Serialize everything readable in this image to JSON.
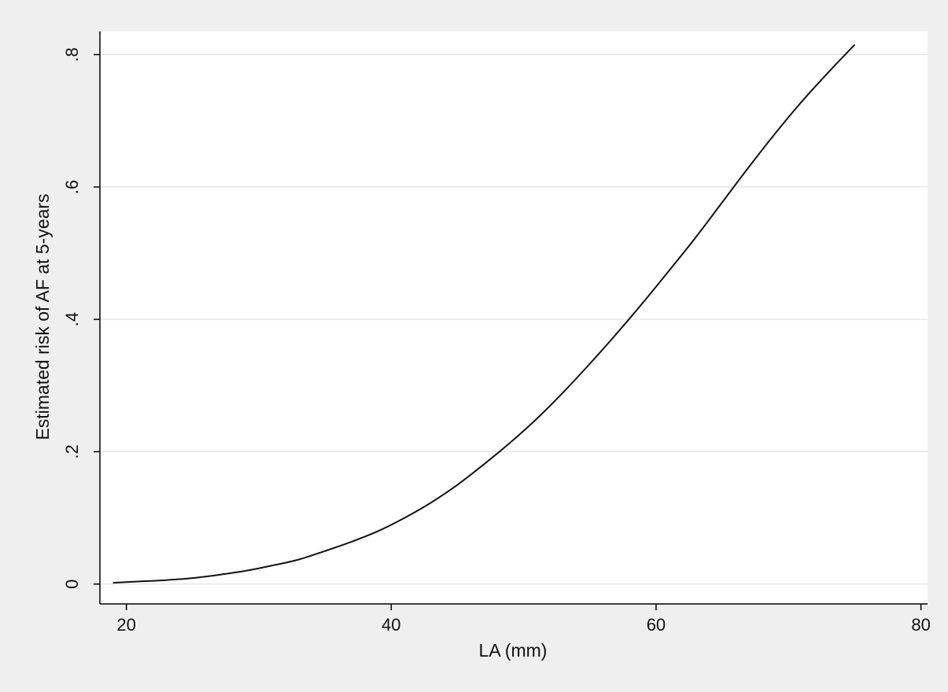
{
  "chart_data": {
    "type": "line",
    "title": "",
    "xlabel": "LA (mm)",
    "ylabel": "Estimated risk of AF at 5-years",
    "xlim": [
      18,
      80.5
    ],
    "ylim": [
      -0.03,
      0.835
    ],
    "x_ticks": [
      20,
      40,
      60,
      80
    ],
    "x_tick_labels": [
      "20",
      "40",
      "60",
      "80"
    ],
    "y_ticks": [
      0,
      0.2,
      0.4,
      0.6,
      0.8
    ],
    "y_tick_labels": [
      "0",
      ".2",
      ".4",
      ".6",
      ".8"
    ],
    "grid": "horizontal",
    "legend": "none",
    "series": [
      {
        "x": [
          19,
          21,
          23,
          25,
          27,
          29,
          31,
          33,
          35,
          37,
          39,
          41,
          43,
          45,
          47,
          49,
          51,
          53,
          55,
          57,
          59,
          61,
          63,
          65,
          67,
          69,
          71,
          73,
          75
        ],
        "values": [
          0.002,
          0.004,
          0.006,
          0.009,
          0.014,
          0.02,
          0.028,
          0.037,
          0.05,
          0.064,
          0.08,
          0.1,
          0.123,
          0.15,
          0.181,
          0.214,
          0.25,
          0.29,
          0.333,
          0.378,
          0.425,
          0.474,
          0.524,
          0.577,
          0.63,
          0.681,
          0.729,
          0.773,
          0.815
        ]
      }
    ],
    "colors": {
      "background": "#efefef",
      "plot_area": "#ffffff",
      "line": "#111111",
      "grid": "#dddddd",
      "axis": "#000000"
    }
  }
}
